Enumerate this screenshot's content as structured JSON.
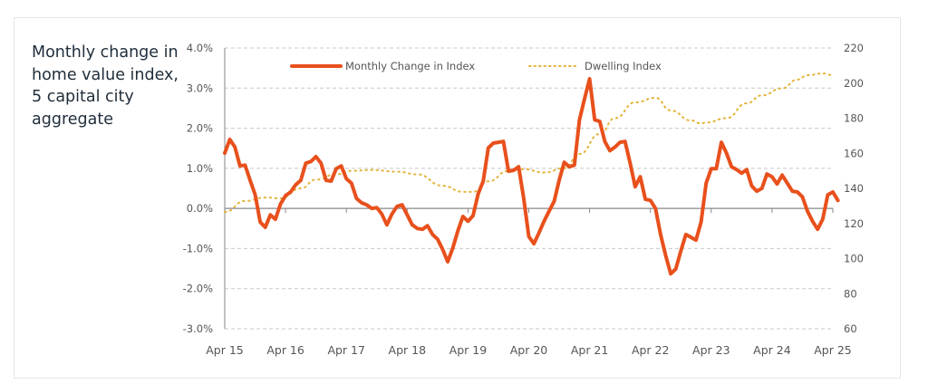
{
  "chart_data": {
    "type": "line",
    "title": "Monthly change in home value index, 5 capital city aggregate",
    "xlabel": "",
    "x_tick_labels": [
      "Apr 15",
      "Apr 16",
      "Apr 17",
      "Apr 18",
      "Apr 19",
      "Apr 20",
      "Apr 21",
      "Apr 22",
      "Apr 23",
      "Apr 24",
      "Apr 25"
    ],
    "x_unit": "months since Apr 2015",
    "xlim": [
      0,
      120
    ],
    "y_left": {
      "label": "",
      "ylim": [
        -3.0,
        4.0
      ],
      "ticks": [
        "4.0%",
        "3.0%",
        "2.0%",
        "1.0%",
        "0.0%",
        "-1.0%",
        "-2.0%",
        "-3.0%"
      ]
    },
    "y_right": {
      "label": "",
      "ylim": [
        60,
        220
      ],
      "ticks": [
        "220",
        "200",
        "180",
        "160",
        "140",
        "120",
        "100",
        "80",
        "60"
      ]
    },
    "grid": true,
    "legend_position": "top-center",
    "series": [
      {
        "name": "Monthly Change in Index",
        "axis": "left",
        "color": "#e8501c",
        "style": "solid",
        "values": [
          1.38,
          1.72,
          1.53,
          1.06,
          1.08,
          0.7,
          0.34,
          -0.34,
          -0.47,
          -0.16,
          -0.27,
          0.11,
          0.32,
          0.41,
          0.59,
          0.7,
          1.13,
          1.17,
          1.29,
          1.13,
          0.7,
          0.68,
          0.99,
          1.06,
          0.74,
          0.63,
          0.25,
          0.14,
          0.09,
          0.0,
          0.02,
          -0.14,
          -0.41,
          -0.14,
          0.05,
          0.09,
          -0.16,
          -0.41,
          -0.5,
          -0.52,
          -0.43,
          -0.65,
          -0.77,
          -1.02,
          -1.33,
          -0.99,
          -0.56,
          -0.2,
          -0.32,
          -0.18,
          0.36,
          0.68,
          1.51,
          1.63,
          1.65,
          1.67,
          0.93,
          0.95,
          1.04,
          0.25,
          -0.7,
          -0.88,
          -0.61,
          -0.32,
          -0.07,
          0.18,
          0.7,
          1.15,
          1.04,
          1.08,
          2.21,
          2.73,
          3.23,
          2.21,
          2.17,
          1.67,
          1.44,
          1.53,
          1.65,
          1.67,
          1.13,
          0.54,
          0.79,
          0.23,
          0.2,
          0.0,
          -0.65,
          -1.17,
          -1.63,
          -1.51,
          -1.06,
          -0.65,
          -0.72,
          -0.79,
          -0.34,
          0.63,
          0.99,
          0.99,
          1.65,
          1.38,
          1.04,
          0.97,
          0.88,
          0.97,
          0.56,
          0.43,
          0.5,
          0.86,
          0.79,
          0.61,
          0.83,
          0.63,
          0.43,
          0.41,
          0.29,
          -0.07,
          -0.32,
          -0.52,
          -0.27,
          0.34,
          0.41,
          0.2
        ]
      },
      {
        "name": "Dwelling Index",
        "axis": "right",
        "color": "#e3b43c",
        "style": "dotted",
        "x": [
          0,
          4,
          8,
          11,
          15,
          18,
          22,
          25,
          29,
          34,
          38,
          43,
          47,
          49,
          52,
          56,
          59,
          63,
          67,
          70,
          74,
          77,
          81,
          85,
          88,
          92,
          94,
          95,
          99,
          103,
          106,
          110,
          113,
          115,
          118,
          120
        ],
        "values": [
          126.6,
          132.8,
          134.8,
          134.3,
          140,
          145,
          148,
          150,
          150.5,
          149.5,
          148,
          141.5,
          138,
          138,
          144,
          150,
          151,
          149,
          151.5,
          159.6,
          171,
          180,
          189,
          191.6,
          184.4,
          178.7,
          177,
          177.5,
          180,
          188.5,
          193,
          197,
          202,
          204.5,
          205.5,
          204.5
        ]
      }
    ]
  }
}
